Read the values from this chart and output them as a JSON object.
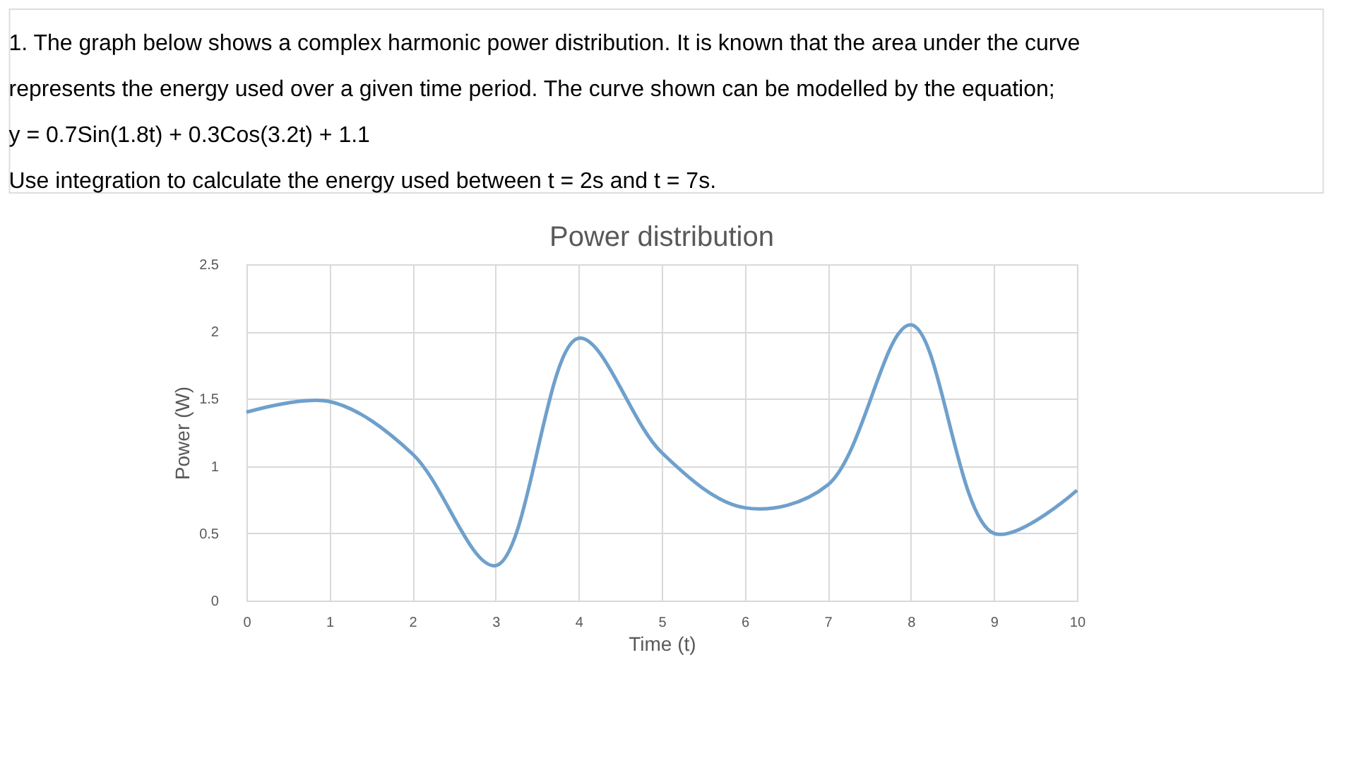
{
  "chart_data": {
    "type": "line",
    "title": "Power distribution",
    "xlabel": "Time (t)",
    "ylabel": "Power (W)",
    "annotations": [
      "1. The graph below shows a complex harmonic power distribution.  It is known that the area under the curve",
      "represents the energy used over a given time period.  The curve shown can be modelled by the equation;",
      "y = 0.7Sin(1.8t) + 0.3Cos(3.2t) + 1.1",
      "Use integration to calculate the energy used between t = 2s and t = 7s."
    ],
    "x": [
      0,
      1,
      2,
      3,
      4,
      5,
      6,
      7,
      8,
      9,
      10
    ],
    "series": [
      {
        "color": "#6fa0cc",
        "values": [
          1.4,
          1.48,
          1.09,
          0.26,
          1.95,
          1.1,
          0.69,
          0.86,
          2.05,
          0.5,
          0.82
        ]
      }
    ],
    "xlim": [
      0,
      10
    ],
    "xticks": [
      0,
      1,
      2,
      3,
      4,
      5,
      6,
      7,
      8,
      9,
      10
    ],
    "ylim": [
      0,
      2.5
    ],
    "yticks": [
      0,
      0.5,
      1,
      1.5,
      2,
      2.5
    ],
    "grid": true,
    "marker": "none",
    "line_style": "solid"
  }
}
